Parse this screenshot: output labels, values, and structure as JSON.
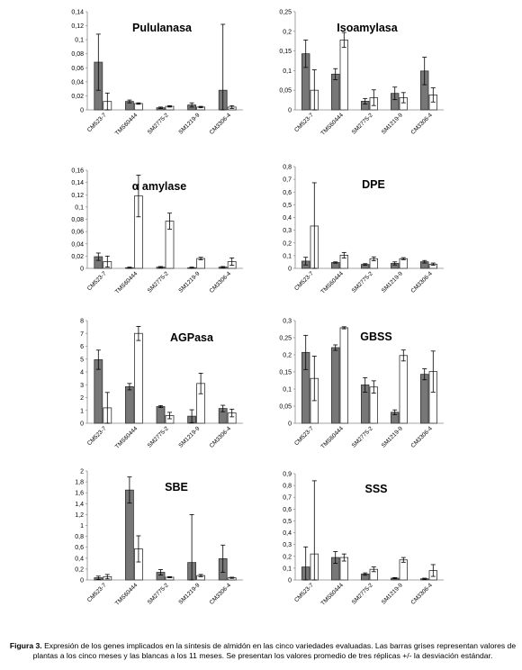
{
  "chart_data": [
    {
      "type": "bar",
      "title": "Pululanasa",
      "categories": [
        "CM523-7",
        "TMS60444",
        "SM2775-2",
        "SM1219-9",
        "CM3306-4"
      ],
      "ylim": [
        0,
        0.14
      ],
      "yticks": [
        "0",
        "0,02",
        "0,04",
        "0,06",
        "0,08",
        "0,1",
        "0,12",
        "0,14"
      ],
      "series": [
        {
          "values": [
            0.068,
            0.012,
            0.003,
            0.007,
            0.028
          ],
          "errors": [
            0.04,
            0.002,
            0.001,
            0.003,
            0.094
          ],
          "color": "#777777"
        },
        {
          "values": [
            0.012,
            0.009,
            0.005,
            0.004,
            0.004
          ],
          "errors": [
            0.012,
            0.001,
            0.001,
            0.001,
            0.002
          ],
          "color": "#ffffff"
        }
      ]
    },
    {
      "type": "bar",
      "title": "Isoamylasa",
      "categories": [
        "CM523-7",
        "TMS60444",
        "SM2775-2",
        "SM1219-9",
        "CM3306-4"
      ],
      "ylim": [
        0,
        0.25
      ],
      "yticks": [
        "0",
        "0,05",
        "0,1",
        "0,15",
        "0,2",
        "0,25"
      ],
      "series": [
        {
          "values": [
            0.143,
            0.091,
            0.022,
            0.042,
            0.099
          ],
          "errors": [
            0.035,
            0.014,
            0.007,
            0.016,
            0.035
          ],
          "color": "#777777"
        },
        {
          "values": [
            0.05,
            0.178,
            0.031,
            0.031,
            0.038
          ],
          "errors": [
            0.052,
            0.019,
            0.02,
            0.013,
            0.018
          ],
          "color": "#ffffff"
        }
      ]
    },
    {
      "type": "bar",
      "title": "α amylase",
      "categories": [
        "CM523-7",
        "TMS60444",
        "SM2775-2",
        "SM1219-9",
        "CM3306-4"
      ],
      "ylim": [
        0,
        0.16
      ],
      "yticks": [
        "0",
        "0,02",
        "0,04",
        "0,06",
        "0,08",
        "0,1",
        "0,12",
        "0,14",
        "0,16"
      ],
      "series": [
        {
          "values": [
            0.019,
            0.001,
            0.002,
            0.001,
            0.002
          ],
          "errors": [
            0.006,
            0.001,
            0.001,
            0.001,
            0.001
          ],
          "color": "#777777"
        },
        {
          "values": [
            0.011,
            0.118,
            0.077,
            0.016,
            0.011
          ],
          "errors": [
            0.009,
            0.034,
            0.013,
            0.002,
            0.006
          ],
          "color": "#ffffff"
        }
      ]
    },
    {
      "type": "bar",
      "title": "DPE",
      "categories": [
        "CM523-7",
        "TMS60444",
        "SM2775-2",
        "SM1219-9",
        "CM3306-4"
      ],
      "ylim": [
        0,
        0.8
      ],
      "yticks": [
        "0",
        "0,1",
        "0,2",
        "0,3",
        "0,4",
        "0,5",
        "0,6",
        "0,7",
        "0,8"
      ],
      "series": [
        {
          "values": [
            0.057,
            0.046,
            0.031,
            0.039,
            0.052
          ],
          "errors": [
            0.03,
            0.005,
            0.006,
            0.012,
            0.01
          ],
          "color": "#777777"
        },
        {
          "values": [
            0.333,
            0.103,
            0.075,
            0.076,
            0.033
          ],
          "errors": [
            0.34,
            0.022,
            0.015,
            0.008,
            0.009
          ],
          "color": "#ffffff"
        }
      ]
    },
    {
      "type": "bar",
      "title": "AGPasa",
      "categories": [
        "CM523-7",
        "TMS60444",
        "SM2775-2",
        "SM1219-9",
        "CM3306-4"
      ],
      "ylim": [
        0,
        8
      ],
      "yticks": [
        "0",
        "1",
        "2",
        "3",
        "4",
        "5",
        "6",
        "7",
        "8"
      ],
      "series": [
        {
          "values": [
            4.95,
            2.85,
            1.3,
            0.55,
            1.15
          ],
          "errors": [
            0.75,
            0.25,
            0.08,
            0.5,
            0.25
          ],
          "color": "#777777"
        },
        {
          "values": [
            1.2,
            7.0,
            0.6,
            3.1,
            0.8
          ],
          "errors": [
            1.2,
            0.55,
            0.25,
            0.8,
            0.3
          ],
          "color": "#ffffff"
        }
      ]
    },
    {
      "type": "bar",
      "title": "GBSS",
      "categories": [
        "CM523-7",
        "TMS60444",
        "SM2775-2",
        "SM1219-9",
        "CM3306-4"
      ],
      "ylim": [
        0,
        0.3
      ],
      "yticks": [
        "0",
        "0,05",
        "0,1",
        "0,15",
        "0,2",
        "0,25",
        "0,3"
      ],
      "series": [
        {
          "values": [
            0.207,
            0.221,
            0.112,
            0.032,
            0.143
          ],
          "errors": [
            0.05,
            0.008,
            0.021,
            0.007,
            0.016
          ],
          "color": "#777777"
        },
        {
          "values": [
            0.131,
            0.279,
            0.106,
            0.198,
            0.151
          ],
          "errors": [
            0.065,
            0.003,
            0.018,
            0.016,
            0.06
          ],
          "color": "#ffffff"
        }
      ]
    },
    {
      "type": "bar",
      "title": "SBE",
      "categories": [
        "CM523-7",
        "TMS60444",
        "SM2775-2",
        "SM1219-9",
        "CM3306-4"
      ],
      "ylim": [
        0,
        2
      ],
      "yticks": [
        "0",
        "0,2",
        "0,4",
        "0,6",
        "0,8",
        "1",
        "1,2",
        "1,4",
        "1,6",
        "1,8",
        "2"
      ],
      "series": [
        {
          "values": [
            0.04,
            1.65,
            0.14,
            0.32,
            0.39
          ],
          "errors": [
            0.03,
            0.24,
            0.05,
            0.88,
            0.25
          ],
          "color": "#777777"
        },
        {
          "values": [
            0.06,
            0.57,
            0.05,
            0.08,
            0.04
          ],
          "errors": [
            0.04,
            0.24,
            0.01,
            0.02,
            0.01
          ],
          "color": "#ffffff"
        }
      ]
    },
    {
      "type": "bar",
      "title": "SSS",
      "categories": [
        "CM523-7",
        "TMS60444",
        "SM2775-2",
        "SM1219-9",
        "CM3306-4"
      ],
      "ylim": [
        0,
        0.9
      ],
      "yticks": [
        "0",
        "0,1",
        "0,2",
        "0,3",
        "0,4",
        "0,5",
        "0,6",
        "0,7",
        "0,8",
        "0,9"
      ],
      "series": [
        {
          "values": [
            0.11,
            0.19,
            0.05,
            0.015,
            0.01
          ],
          "errors": [
            0.17,
            0.05,
            0.01,
            0.005,
            0.005
          ],
          "color": "#777777"
        },
        {
          "values": [
            0.22,
            0.19,
            0.09,
            0.17,
            0.08
          ],
          "errors": [
            0.62,
            0.03,
            0.02,
            0.02,
            0.05
          ],
          "color": "#ffffff"
        }
      ]
    }
  ],
  "caption": {
    "label": "Figura 3.",
    "text": "Expresión de los genes implicados en la síntesis de almidón en las cinco variedades evaluadas. Las barras grises representan valores de plantas a los cinco meses y las blancas a los 11 meses. Se presentan los valores promedio de tres réplicas +/- la desviación estándar."
  }
}
